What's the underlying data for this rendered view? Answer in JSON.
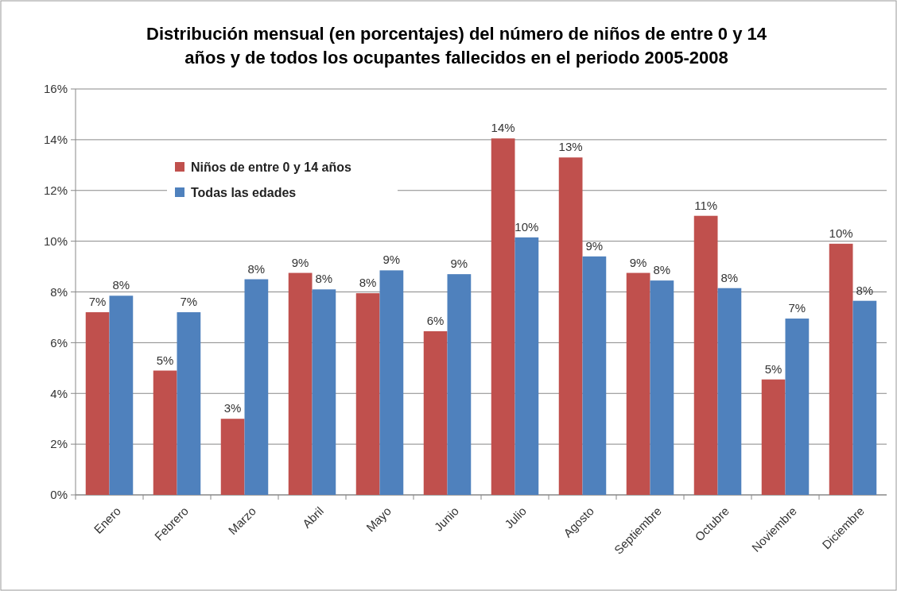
{
  "chart_data": {
    "type": "bar",
    "title": "Distribución mensual (en porcentajes) del número de niños de entre 0 y 14 años y de todos los ocupantes fallecidos en el periodo 2005-2008",
    "categories": [
      "Enero",
      "Febrero",
      "Marzo",
      "Abril",
      "Mayo",
      "Junio",
      "Julio",
      "Agosto",
      "Septiembre",
      "Octubre",
      "Noviembre",
      "Diciembre"
    ],
    "series": [
      {
        "name": "Niños de entre 0 y 14 años",
        "color": "#c0504d",
        "values": [
          7.2,
          4.9,
          3.0,
          8.75,
          7.95,
          6.45,
          14.05,
          13.3,
          8.75,
          11.0,
          4.55,
          9.9
        ],
        "value_labels": [
          "7%",
          "5%",
          "3%",
          "9%",
          "8%",
          "6%",
          "14%",
          "13%",
          "9%",
          "11%",
          "5%",
          "10%"
        ]
      },
      {
        "name": "Todas las edades",
        "color": "#4f81bd",
        "values": [
          7.85,
          7.2,
          8.5,
          8.1,
          8.85,
          8.7,
          10.15,
          9.4,
          8.45,
          8.15,
          6.95,
          7.65
        ],
        "value_labels": [
          "8%",
          "7%",
          "8%",
          "8%",
          "9%",
          "9%",
          "10%",
          "9%",
          "8%",
          "8%",
          "7%",
          "8%"
        ]
      }
    ],
    "ylim": [
      0,
      16
    ],
    "yticks": [
      {
        "value": 0,
        "label": "0%"
      },
      {
        "value": 2,
        "label": "2%"
      },
      {
        "value": 4,
        "label": "4%"
      },
      {
        "value": 6,
        "label": "6%"
      },
      {
        "value": 8,
        "label": "8%"
      },
      {
        "value": 10,
        "label": "10%"
      },
      {
        "value": 12,
        "label": "12%"
      },
      {
        "value": 14,
        "label": "14%"
      },
      {
        "value": 16,
        "label": "16%"
      }
    ],
    "grid": "y",
    "legend": "top left"
  }
}
